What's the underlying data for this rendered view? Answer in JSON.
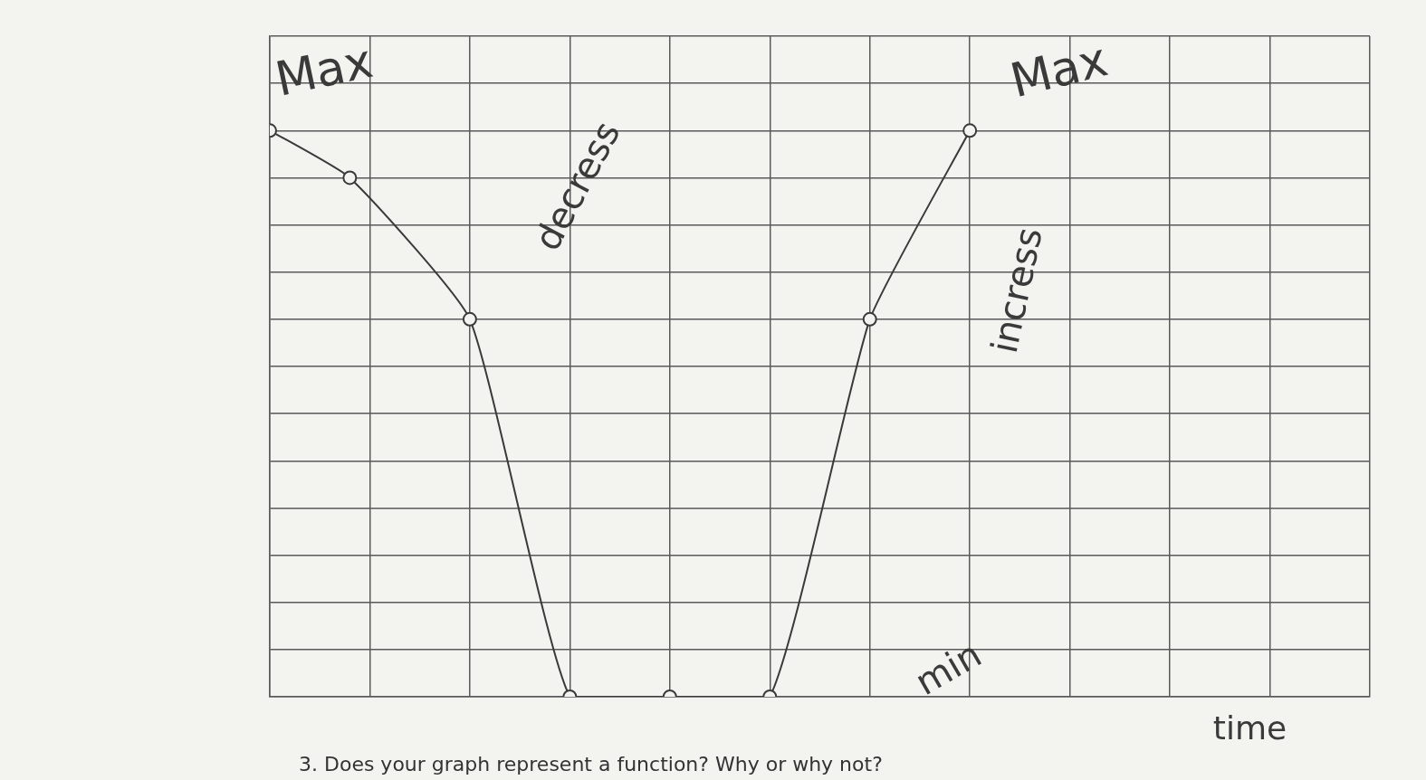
{
  "chart_data": {
    "type": "line",
    "x_label": "time",
    "annotations": [
      "Max",
      "decress",
      "incress",
      "min",
      "Max",
      "3. Does your graph represent a function? Why or why not?"
    ],
    "x": [
      0,
      0.8,
      2,
      3,
      4,
      5,
      6,
      7
    ],
    "series": [
      {
        "color": "#3a3a3a",
        "marker": "circle",
        "line_style": "solid",
        "values": [
          12,
          11,
          8,
          0,
          0,
          0,
          8,
          12
        ]
      }
    ],
    "xlim": [
      0,
      11
    ],
    "xticks": [
      0,
      1,
      2,
      3,
      4,
      5,
      6,
      7,
      8,
      9,
      10,
      11
    ],
    "ylim": [
      0,
      14
    ],
    "yticks": [
      0,
      1,
      2,
      3,
      4,
      5,
      6,
      7,
      8,
      9,
      10,
      11,
      12,
      13,
      14
    ],
    "grid": true,
    "tick_labels": false
  }
}
